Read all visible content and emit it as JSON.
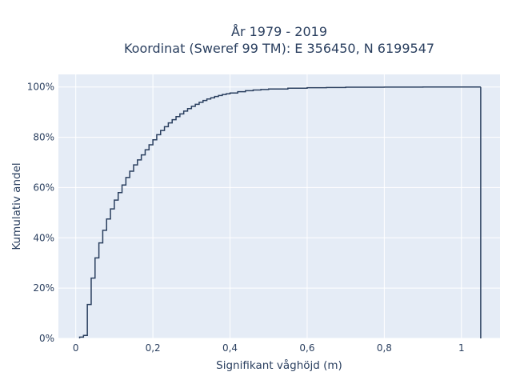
{
  "chart_data": {
    "type": "line",
    "line_shape": "step",
    "title": [
      "År 1979 - 2019",
      "Koordinat (Sweref 99 TM): E 356450, N 6199547"
    ],
    "xlabel": "Signifikant våghöjd (m)",
    "ylabel": "Kumulativ andel",
    "xlim": [
      -0.045,
      1.1
    ],
    "ylim": [
      0,
      1.05
    ],
    "x_ticks": [
      0,
      0.2,
      0.4,
      0.6,
      0.8,
      1
    ],
    "x_tick_labels": [
      "0",
      "0,2",
      "0,4",
      "0,6",
      "0,8",
      "1"
    ],
    "y_ticks": [
      0,
      0.2,
      0.4,
      0.6,
      0.8,
      1.0
    ],
    "y_tick_labels": [
      "0%",
      "20%",
      "40%",
      "60%",
      "80%",
      "100%"
    ],
    "grid": true,
    "colors": {
      "plot_bg": "#e5ecf6",
      "grid": "#ffffff",
      "line": "#2a3f5f"
    },
    "series": [
      {
        "x": [
          0.01,
          0.02,
          0.03,
          0.04,
          0.05,
          0.06,
          0.07,
          0.08,
          0.09,
          0.1,
          0.11,
          0.12,
          0.13,
          0.14,
          0.15,
          0.16,
          0.17,
          0.18,
          0.19,
          0.2,
          0.21,
          0.22,
          0.23,
          0.24,
          0.25,
          0.26,
          0.27,
          0.28,
          0.29,
          0.3,
          0.31,
          0.32,
          0.33,
          0.34,
          0.35,
          0.36,
          0.37,
          0.38,
          0.39,
          0.4,
          0.42,
          0.44,
          0.46,
          0.48,
          0.5,
          0.55,
          0.6,
          0.65,
          0.7,
          0.8,
          0.9,
          1.05
        ],
        "y": [
          0.005,
          0.012,
          0.135,
          0.24,
          0.32,
          0.38,
          0.43,
          0.475,
          0.515,
          0.55,
          0.58,
          0.61,
          0.64,
          0.665,
          0.69,
          0.71,
          0.73,
          0.75,
          0.77,
          0.79,
          0.81,
          0.827,
          0.842,
          0.857,
          0.87,
          0.882,
          0.893,
          0.904,
          0.914,
          0.923,
          0.931,
          0.939,
          0.946,
          0.952,
          0.957,
          0.962,
          0.966,
          0.97,
          0.973,
          0.976,
          0.981,
          0.985,
          0.988,
          0.99,
          0.992,
          0.995,
          0.997,
          0.998,
          0.999,
          0.9995,
          0.9999,
          1.0
        ]
      }
    ]
  }
}
